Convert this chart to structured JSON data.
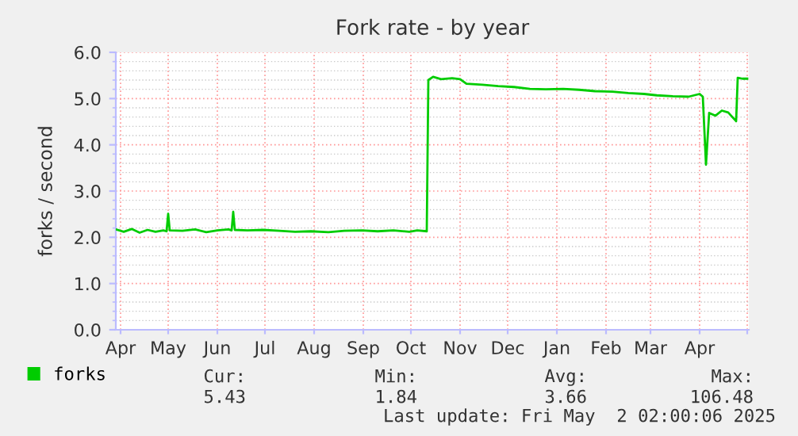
{
  "chart_data": {
    "type": "line",
    "title": "Fork rate - by year",
    "ylabel": "forks / second",
    "x": [
      "2024-03-29",
      "2024-04-03",
      "2024-04-08",
      "2024-04-13",
      "2024-04-18",
      "2024-04-23",
      "2024-04-28",
      "2024-04-30",
      "2024-05-01",
      "2024-05-02",
      "2024-05-10",
      "2024-05-18",
      "2024-05-25",
      "2024-06-01",
      "2024-06-08",
      "2024-06-10",
      "2024-06-11",
      "2024-06-12",
      "2024-06-20",
      "2024-06-30",
      "2024-07-10",
      "2024-07-20",
      "2024-07-30",
      "2024-08-10",
      "2024-08-20",
      "2024-08-31",
      "2024-09-10",
      "2024-09-20",
      "2024-09-30",
      "2024-10-05",
      "2024-10-11",
      "2024-10-12",
      "2024-10-15",
      "2024-10-20",
      "2024-10-27",
      "2024-11-01",
      "2024-11-05",
      "2024-11-15",
      "2024-11-25",
      "2024-12-05",
      "2024-12-15",
      "2024-12-25",
      "2025-01-05",
      "2025-01-15",
      "2025-01-25",
      "2025-02-05",
      "2025-02-15",
      "2025-02-25",
      "2025-03-05",
      "2025-03-15",
      "2025-03-25",
      "2025-04-01",
      "2025-04-03",
      "2025-04-05",
      "2025-04-07",
      "2025-04-11",
      "2025-04-15",
      "2025-04-19",
      "2025-04-24",
      "2025-04-25",
      "2025-04-28",
      "2025-05-01"
    ],
    "series": [
      {
        "name": "forks",
        "color": "#00cc00",
        "values": [
          2.17,
          2.12,
          2.18,
          2.1,
          2.16,
          2.12,
          2.15,
          2.13,
          2.51,
          2.15,
          2.14,
          2.17,
          2.11,
          2.15,
          2.17,
          2.15,
          2.55,
          2.16,
          2.15,
          2.16,
          2.14,
          2.12,
          2.13,
          2.11,
          2.14,
          2.15,
          2.13,
          2.15,
          2.12,
          2.15,
          2.13,
          5.4,
          5.47,
          5.42,
          5.44,
          5.42,
          5.32,
          5.3,
          5.27,
          5.25,
          5.21,
          5.2,
          5.21,
          5.19,
          5.16,
          5.15,
          5.12,
          5.1,
          5.07,
          5.05,
          5.04,
          5.1,
          5.04,
          3.57,
          4.69,
          4.63,
          4.74,
          4.7,
          4.51,
          5.45,
          5.43,
          5.43
        ]
      }
    ],
    "xlim": [
      "2024-03-29",
      "2025-05-02"
    ],
    "xticks": [
      {
        "value": "2024-04-01",
        "label": "Apr"
      },
      {
        "value": "2024-05-01",
        "label": "May"
      },
      {
        "value": "2024-06-01",
        "label": "Jun"
      },
      {
        "value": "2024-07-01",
        "label": "Jul"
      },
      {
        "value": "2024-08-01",
        "label": "Aug"
      },
      {
        "value": "2024-09-01",
        "label": "Sep"
      },
      {
        "value": "2024-10-01",
        "label": "Oct"
      },
      {
        "value": "2024-11-01",
        "label": "Nov"
      },
      {
        "value": "2024-12-01",
        "label": "Dec"
      },
      {
        "value": "2025-01-01",
        "label": "Jan"
      },
      {
        "value": "2025-02-01",
        "label": "Feb"
      },
      {
        "value": "2025-03-01",
        "label": "Mar"
      },
      {
        "value": "2025-04-01",
        "label": "Apr"
      },
      {
        "value": "2025-05-01",
        "label": null
      }
    ],
    "ylim": [
      0,
      6
    ],
    "yticks": [
      {
        "value": 0,
        "label": "0.0"
      },
      {
        "value": 1,
        "label": "1.0"
      },
      {
        "value": 2,
        "label": "2.0"
      },
      {
        "value": 3,
        "label": "3.0"
      },
      {
        "value": 4,
        "label": "4.0"
      },
      {
        "value": 5,
        "label": "5.0"
      },
      {
        "value": 6,
        "label": "6.0"
      },
      {
        "value": 0.2,
        "label": null
      },
      {
        "value": 0.4,
        "label": null
      },
      {
        "value": 0.6,
        "label": null
      },
      {
        "value": 0.8,
        "label": null
      },
      {
        "value": 1.2,
        "label": null
      },
      {
        "value": 1.4,
        "label": null
      },
      {
        "value": 1.6,
        "label": null
      },
      {
        "value": 1.8,
        "label": null
      },
      {
        "value": 2.2,
        "label": null
      },
      {
        "value": 2.4,
        "label": null
      },
      {
        "value": 2.6,
        "label": null
      },
      {
        "value": 2.8,
        "label": null
      },
      {
        "value": 3.2,
        "label": null
      },
      {
        "value": 3.4,
        "label": null
      },
      {
        "value": 3.6,
        "label": null
      },
      {
        "value": 3.8,
        "label": null
      },
      {
        "value": 4.2,
        "label": null
      },
      {
        "value": 4.4,
        "label": null
      },
      {
        "value": 4.6,
        "label": null
      },
      {
        "value": 4.8,
        "label": null
      },
      {
        "value": 5.2,
        "label": null
      },
      {
        "value": 5.4,
        "label": null
      },
      {
        "value": 5.6,
        "label": null
      },
      {
        "value": 5.8,
        "label": null
      }
    ],
    "grid": true,
    "legend": "bottom left",
    "marker": "none",
    "line_style": "solid",
    "annotations": [
      "Cur:",
      "Min:",
      "Avg:",
      "Max:",
      "5.43",
      "1.84",
      "3.66",
      "106.48",
      "Last update: Fri May  2 02:00:06 2025"
    ]
  }
}
